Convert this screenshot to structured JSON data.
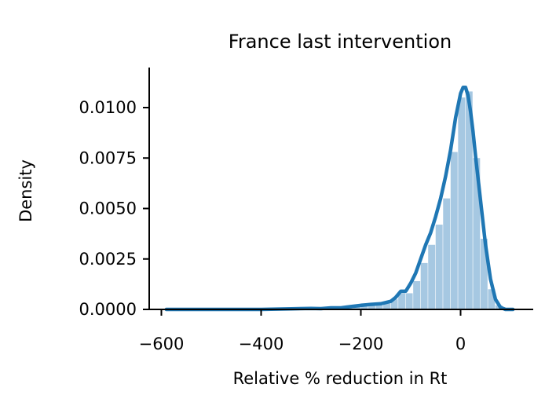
{
  "chart_data": {
    "type": "histogram+kde",
    "title": "France last intervention",
    "xlabel": "Relative % reduction in Rt",
    "ylabel": "Density",
    "xlim": [
      -625,
      140
    ],
    "ylim": [
      0,
      0.012
    ],
    "x_ticks": [
      -600,
      -400,
      -200,
      0
    ],
    "x_tick_labels": [
      "−600",
      "−400",
      "−200",
      "0"
    ],
    "y_ticks": [
      0,
      0.0025,
      0.005,
      0.0075,
      0.01
    ],
    "y_tick_labels": [
      "0.0000",
      "0.0025",
      "0.0050",
      "0.0075",
      "0.0100"
    ],
    "hist_color": "#a6c8e2",
    "line_color": "#1f77b4",
    "bin_width": 15,
    "histogram": [
      {
        "x0": -260,
        "x1": -245,
        "density": 0.0001
      },
      {
        "x0": -245,
        "x1": -230,
        "density": 0.0001
      },
      {
        "x0": -230,
        "x1": -215,
        "density": 0.0002
      },
      {
        "x0": -215,
        "x1": -200,
        "density": 0.0002
      },
      {
        "x0": -200,
        "x1": -185,
        "density": 0.0003
      },
      {
        "x0": -185,
        "x1": -170,
        "density": 0.0003
      },
      {
        "x0": -170,
        "x1": -155,
        "density": 0.0002
      },
      {
        "x0": -155,
        "x1": -140,
        "density": 0.0003
      },
      {
        "x0": -140,
        "x1": -125,
        "density": 0.0005
      },
      {
        "x0": -125,
        "x1": -110,
        "density": 0.0008
      },
      {
        "x0": -110,
        "x1": -95,
        "density": 0.0008
      },
      {
        "x0": -95,
        "x1": -80,
        "density": 0.0014
      },
      {
        "x0": -80,
        "x1": -65,
        "density": 0.0023
      },
      {
        "x0": -65,
        "x1": -50,
        "density": 0.0032
      },
      {
        "x0": -50,
        "x1": -35,
        "density": 0.0042
      },
      {
        "x0": -35,
        "x1": -20,
        "density": 0.0055
      },
      {
        "x0": -20,
        "x1": -5,
        "density": 0.0078
      },
      {
        "x0": -5,
        "x1": 10,
        "density": 0.0105
      },
      {
        "x0": 10,
        "x1": 25,
        "density": 0.0108
      },
      {
        "x0": 25,
        "x1": 40,
        "density": 0.0075
      },
      {
        "x0": 40,
        "x1": 55,
        "density": 0.0035
      },
      {
        "x0": 55,
        "x1": 70,
        "density": 0.001
      },
      {
        "x0": 70,
        "x1": 85,
        "density": 0.0002
      }
    ],
    "kde": {
      "x": [
        -590,
        -500,
        -400,
        -340,
        -300,
        -280,
        -260,
        -240,
        -220,
        -200,
        -180,
        -160,
        -140,
        -130,
        -120,
        -110,
        -100,
        -90,
        -80,
        -70,
        -60,
        -50,
        -40,
        -30,
        -20,
        -10,
        0,
        5,
        10,
        15,
        20,
        25,
        30,
        40,
        50,
        60,
        70,
        80,
        90,
        105
      ],
      "y": [
        0.0,
        0.0,
        0.0,
        3e-05,
        5e-05,
        4e-05,
        8e-05,
        8e-05,
        0.00014,
        0.0002,
        0.00025,
        0.00028,
        0.0004,
        0.0006,
        0.0009,
        0.0009,
        0.0013,
        0.0018,
        0.0025,
        0.0032,
        0.0038,
        0.0046,
        0.0055,
        0.0066,
        0.0079,
        0.0095,
        0.0107,
        0.011,
        0.011,
        0.0106,
        0.0098,
        0.0088,
        0.0076,
        0.0054,
        0.0032,
        0.0015,
        0.0005,
        0.0001,
        0.0,
        0.0
      ]
    }
  }
}
